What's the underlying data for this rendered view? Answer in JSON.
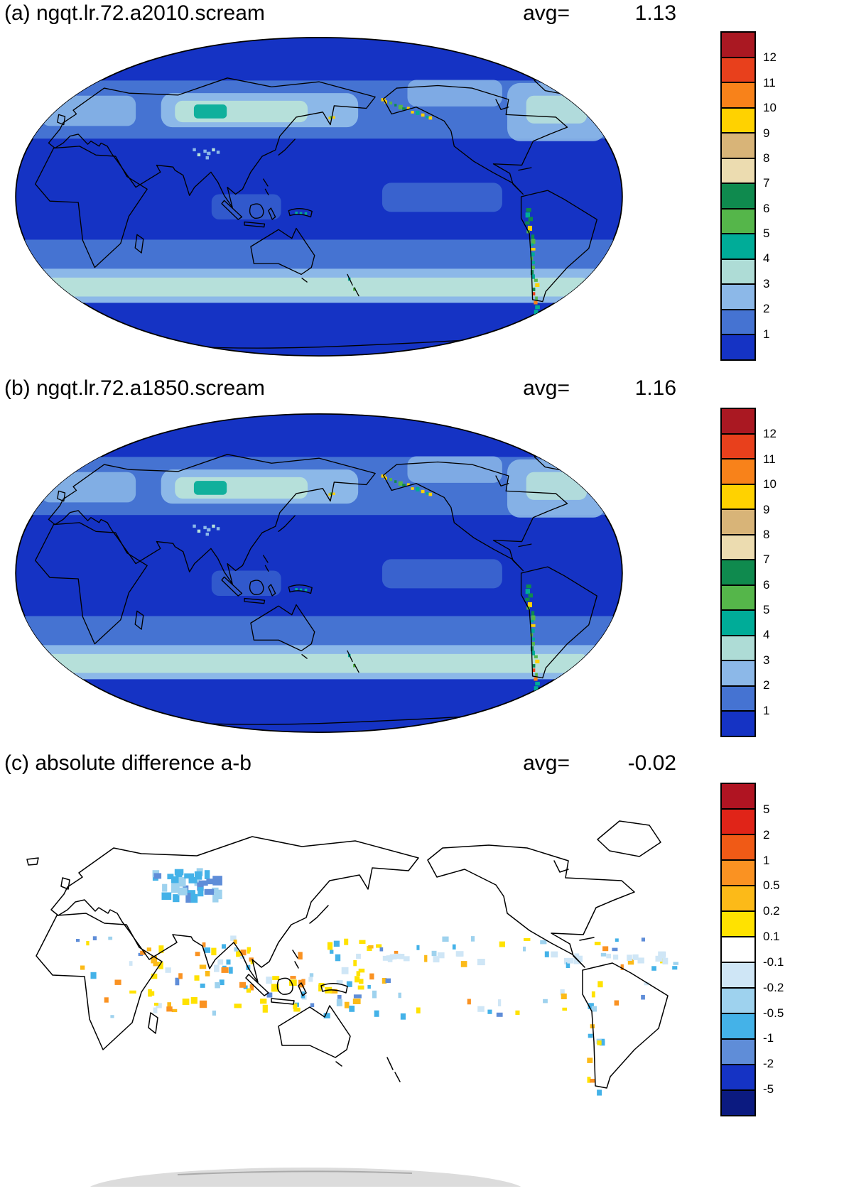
{
  "figure": {
    "background": "#ffffff",
    "panels": [
      {
        "id": "a",
        "title": "(a) ngqt.lr.72.a2010.scream",
        "avg_label": "avg=",
        "avg_value": "1.13",
        "colorbar": {
          "ticks": [
            "12",
            "11",
            "10",
            "9",
            "8",
            "7",
            "6",
            "5",
            "4",
            "3",
            "2",
            "1"
          ],
          "colors": [
            "#aa1822",
            "#e8401c",
            "#f8821a",
            "#ffd200",
            "#d8b478",
            "#ecdcb0",
            "#0f8a4e",
            "#55b64a",
            "#00ac98",
            "#aedcd6",
            "#8cb8e8",
            "#4573d2",
            "#1533c4"
          ]
        }
      },
      {
        "id": "b",
        "title": "(b) ngqt.lr.72.a1850.scream",
        "avg_label": "avg=",
        "avg_value": "1.16",
        "colorbar": {
          "ticks": [
            "12",
            "11",
            "10",
            "9",
            "8",
            "7",
            "6",
            "5",
            "4",
            "3",
            "2",
            "1"
          ],
          "colors": [
            "#aa1822",
            "#e8401c",
            "#f8821a",
            "#ffd200",
            "#d8b478",
            "#ecdcb0",
            "#0f8a4e",
            "#55b64a",
            "#00ac98",
            "#aedcd6",
            "#8cb8e8",
            "#4573d2",
            "#1533c4"
          ]
        }
      },
      {
        "id": "c",
        "title": "(c) absolute difference a-b",
        "avg_label": "avg=",
        "avg_value": "-0.02",
        "colorbar": {
          "ticks": [
            "5",
            "2",
            "1",
            "0.5",
            "0.2",
            "0.1",
            "-0.1",
            "-0.2",
            "-0.5",
            "-1",
            "-2",
            "-5"
          ],
          "colors": [
            "#b01422",
            "#e02418",
            "#f05a16",
            "#fa9222",
            "#fcba18",
            "#ffe200",
            "#ffffff",
            "#cfe6f6",
            "#9ed2ee",
            "#44b2e8",
            "#5f8dd8",
            "#1533c4",
            "#0b1a80"
          ]
        }
      }
    ]
  },
  "chart_data": [
    {
      "type": "heatmap",
      "title": "(a) ngqt.lr.72.a2010.scream",
      "annotation": "avg= 1.13",
      "projection": "global world map, Pacific-centered oval",
      "colorbar_ticks": [
        12,
        11,
        10,
        9,
        8,
        7,
        6,
        5,
        4,
        3,
        2,
        1
      ],
      "colorbar_colors": [
        "#aa1822",
        "#e8401c",
        "#f8821a",
        "#ffd200",
        "#d8b478",
        "#ecdcb0",
        "#0f8a4e",
        "#55b64a",
        "#00ac98",
        "#aedcd6",
        "#8cb8e8",
        "#4573d2",
        "#1533c4"
      ],
      "description": "Field mostly below 1 (dark blue) in tropics and poles; 1-3 (medium/light blue) mid-latitudes; 3-4 (pale cyan) storm tracks in Southern Ocean and North Pacific; small 4-6 teal patch NW Pacific; isolated high values along Andes and Alaska coast"
    },
    {
      "type": "heatmap",
      "title": "(b) ngqt.lr.72.a1850.scream",
      "annotation": "avg= 1.16",
      "projection": "global world map, Pacific-centered oval",
      "colorbar_ticks": [
        12,
        11,
        10,
        9,
        8,
        7,
        6,
        5,
        4,
        3,
        2,
        1
      ],
      "colorbar_colors": [
        "#aa1822",
        "#e8401c",
        "#f8821a",
        "#ffd200",
        "#d8b478",
        "#ecdcb0",
        "#0f8a4e",
        "#55b64a",
        "#00ac98",
        "#aedcd6",
        "#8cb8e8",
        "#4573d2",
        "#1533c4"
      ],
      "description": "Nearly identical spatial pattern to panel (a)"
    },
    {
      "type": "heatmap",
      "title": "(c) absolute difference a-b",
      "annotation": "avg= -0.02",
      "projection": "global world map, coastlines only on white",
      "colorbar_ticks": [
        5,
        2,
        1,
        0.5,
        0.2,
        0.1,
        -0.1,
        -0.2,
        -0.5,
        -1,
        -2,
        -5
      ],
      "colorbar_colors": [
        "#b01422",
        "#e02418",
        "#f05a16",
        "#fa9222",
        "#fcba18",
        "#ffe200",
        "#ffffff",
        "#cfe6f6",
        "#9ed2ee",
        "#44b2e8",
        "#5f8dd8",
        "#1533c4",
        "#0b1a80"
      ],
      "description": "Mostly near zero (white); scattered small positive (yellow/orange) and negative (blue) cells concentrated in the tropics and maritime continent; coherent negative (blue) patch over central Asia"
    }
  ]
}
